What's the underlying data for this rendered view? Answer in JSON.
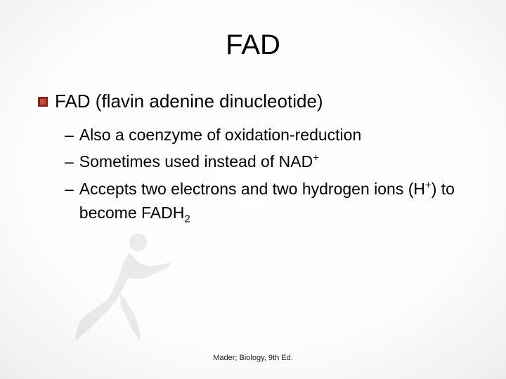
{
  "slide": {
    "title": "FAD",
    "bullet_color": "#8b2020",
    "bullet_accent": "#c05030",
    "main_point": "FAD (flavin adenine dinucleotide)",
    "sub_points": [
      {
        "dash": "–",
        "html": "Also a coenzyme of oxidation-reduction"
      },
      {
        "dash": "–",
        "html": "Sometimes used instead of NAD<sup>+</sup>"
      },
      {
        "dash": "–",
        "html": "Accepts two electrons and two hydrogen ions (H<sup>+</sup>) to become FADH<sub>2</sub>"
      }
    ],
    "footer": "Mader;  Biology, 9th Ed.",
    "title_fontsize": 40,
    "main_fontsize": 26,
    "sub_fontsize": 23,
    "footer_fontsize": 11,
    "text_color": "#000000",
    "bg_gradient_inner": "#ffffff",
    "bg_gradient_outer": "#9a9a9a"
  }
}
